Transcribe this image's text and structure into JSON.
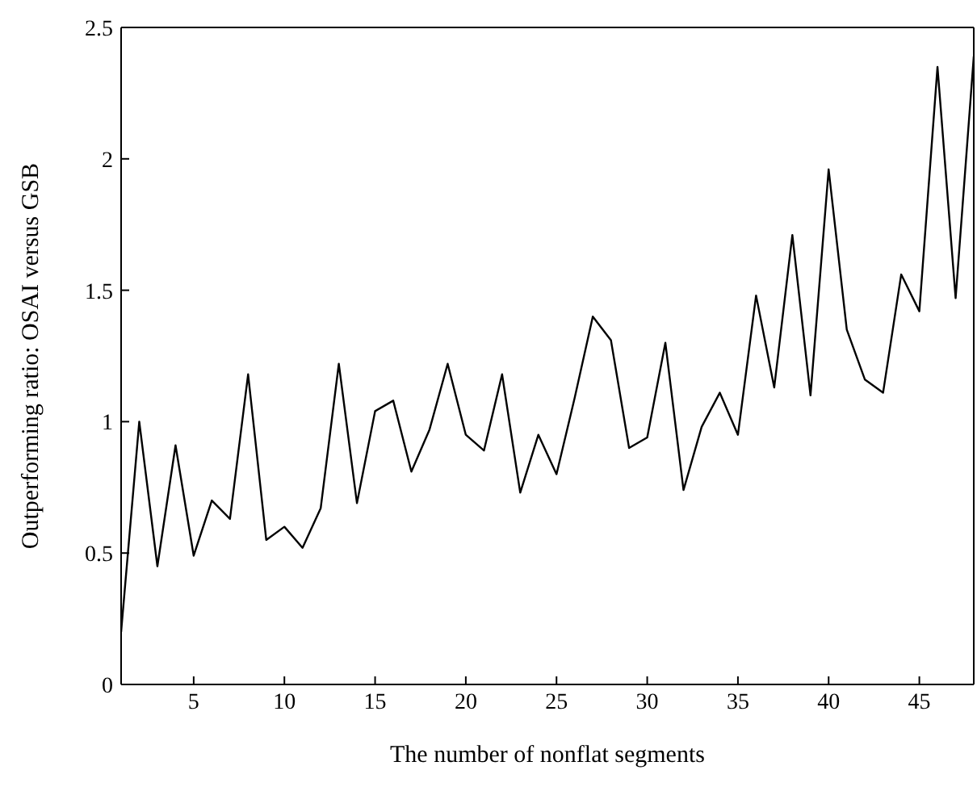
{
  "chart_data": {
    "type": "line",
    "xlabel": "The number of nonflat segments",
    "ylabel": "Outperforming ratio: OSAI versus GSB",
    "x": [
      1,
      2,
      3,
      4,
      5,
      6,
      7,
      8,
      9,
      10,
      11,
      12,
      13,
      14,
      15,
      16,
      17,
      18,
      19,
      20,
      21,
      22,
      23,
      24,
      25,
      26,
      27,
      28,
      29,
      30,
      31,
      32,
      33,
      34,
      35,
      36,
      37,
      38,
      39,
      40,
      41,
      42,
      43,
      44,
      45,
      46,
      47,
      48
    ],
    "series": [
      {
        "color": "#000000",
        "values": [
          0.2,
          1.0,
          0.45,
          0.91,
          0.49,
          0.7,
          0.63,
          1.18,
          0.55,
          0.6,
          0.52,
          0.67,
          1.22,
          0.69,
          1.04,
          1.08,
          0.81,
          0.97,
          1.22,
          0.95,
          0.89,
          1.18,
          0.73,
          0.95,
          0.8,
          1.09,
          1.4,
          1.31,
          0.9,
          0.94,
          1.3,
          0.74,
          0.98,
          1.11,
          0.95,
          1.48,
          1.13,
          1.71,
          1.1,
          1.96,
          1.35,
          1.16,
          1.11,
          1.56,
          1.42,
          2.35,
          1.47,
          2.39
        ]
      }
    ],
    "xlim": [
      1,
      48
    ],
    "xticks": [
      5,
      10,
      15,
      20,
      25,
      30,
      35,
      40,
      45
    ],
    "ylim": [
      0,
      2.5
    ],
    "yticks": [
      0,
      0.5,
      1,
      1.5,
      2,
      2.5
    ],
    "grid": false,
    "legend": false,
    "marker": "none",
    "line_style": "solid"
  }
}
